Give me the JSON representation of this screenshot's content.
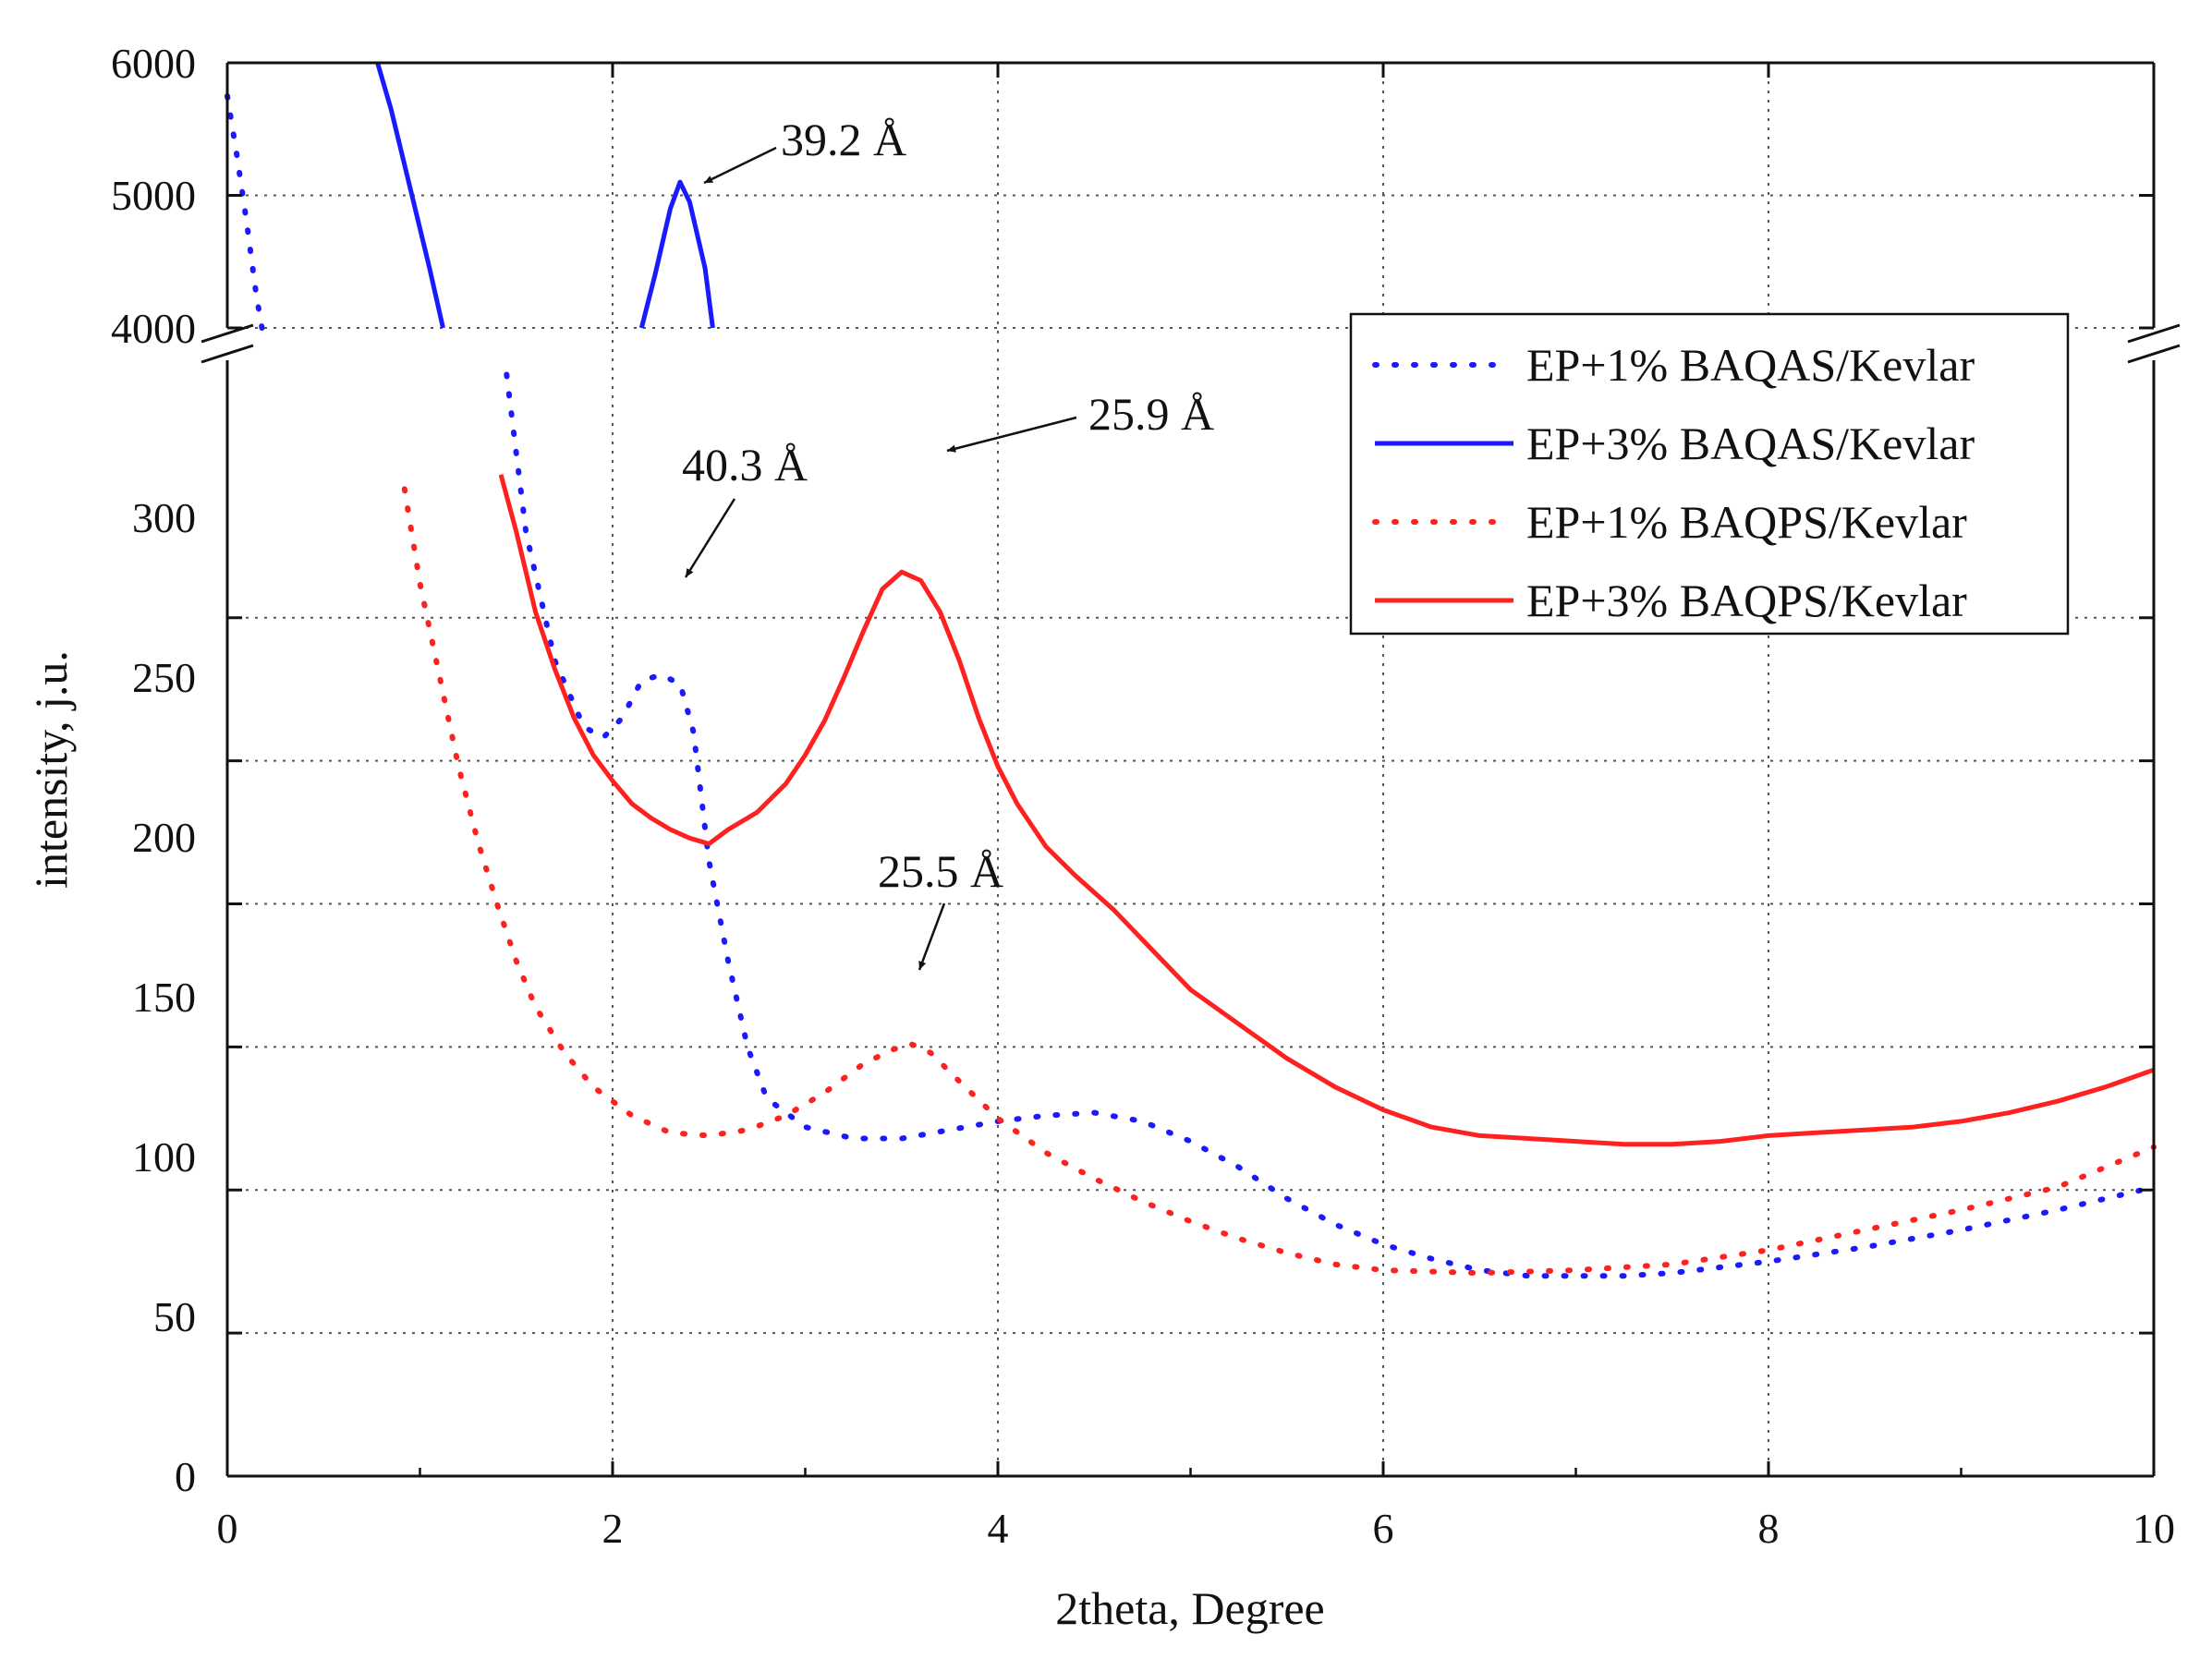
{
  "chart_data": {
    "type": "line",
    "xlabel": "2theta, Degree",
    "ylabel": "intensity, j.u.",
    "xlim": [
      0,
      10
    ],
    "x_ticks": [
      "0",
      "2",
      "4",
      "6",
      "8",
      "10"
    ],
    "y_axis_break": true,
    "y_lower_range": [
      0,
      390
    ],
    "y_lower_ticks": [
      "0",
      "50",
      "100",
      "150",
      "200",
      "250",
      "300"
    ],
    "y_upper_range": [
      4000,
      6000
    ],
    "y_upper_ticks": [
      "4000",
      "5000",
      "6000"
    ],
    "grid": true,
    "legend_position": "upper-right",
    "series": [
      {
        "name": "EP+1% BAQAS/Kevlar",
        "color": "#1a1aff",
        "style": "dotted",
        "upper_points": [
          [
            0.0,
            5750
          ],
          [
            0.05,
            5300
          ],
          [
            0.1,
            4800
          ],
          [
            0.15,
            4250
          ],
          [
            0.18,
            4000
          ]
        ],
        "lower_points": [
          [
            1.45,
            385
          ],
          [
            1.55,
            330
          ],
          [
            1.7,
            285
          ],
          [
            1.85,
            262
          ],
          [
            1.95,
            258
          ],
          [
            2.05,
            265
          ],
          [
            2.15,
            278
          ],
          [
            2.25,
            280
          ],
          [
            2.35,
            277
          ],
          [
            2.42,
            260
          ],
          [
            2.5,
            215
          ],
          [
            2.6,
            180
          ],
          [
            2.7,
            150
          ],
          [
            2.8,
            132
          ],
          [
            3.0,
            122
          ],
          [
            3.25,
            118
          ],
          [
            3.5,
            118
          ],
          [
            3.75,
            121
          ],
          [
            4.0,
            124
          ],
          [
            4.25,
            126
          ],
          [
            4.5,
            127
          ],
          [
            4.75,
            124
          ],
          [
            5.0,
            117
          ],
          [
            5.25,
            108
          ],
          [
            5.5,
            97
          ],
          [
            5.75,
            88
          ],
          [
            6.0,
            81
          ],
          [
            6.25,
            76
          ],
          [
            6.5,
            72
          ],
          [
            6.75,
            70
          ],
          [
            7.0,
            70
          ],
          [
            7.25,
            70
          ],
          [
            7.5,
            71
          ],
          [
            7.75,
            73
          ],
          [
            8.0,
            75
          ],
          [
            8.5,
            80
          ],
          [
            9.0,
            86
          ],
          [
            9.5,
            93
          ],
          [
            10.0,
            101
          ]
        ]
      },
      {
        "name": "EP+3% BAQAS/Kevlar",
        "color": "#1a1aff",
        "style": "solid",
        "upper_segments": [
          [
            [
              0.78,
              6000
            ],
            [
              0.85,
              5650
            ],
            [
              0.95,
              5050
            ],
            [
              1.05,
              4450
            ],
            [
              1.12,
              4000
            ]
          ],
          [
            [
              2.15,
              4000
            ],
            [
              2.22,
              4400
            ],
            [
              2.3,
              4900
            ],
            [
              2.35,
              5100
            ],
            [
              2.4,
              4950
            ],
            [
              2.48,
              4450
            ],
            [
              2.52,
              4000
            ]
          ]
        ]
      },
      {
        "name": "EP+1% BAQPS/Kevlar",
        "color": "#ff2020",
        "style": "dotted",
        "lower_points": [
          [
            0.92,
            345
          ],
          [
            1.0,
            312
          ],
          [
            1.1,
            280
          ],
          [
            1.2,
            248
          ],
          [
            1.3,
            222
          ],
          [
            1.4,
            200
          ],
          [
            1.5,
            180
          ],
          [
            1.6,
            164
          ],
          [
            1.75,
            148
          ],
          [
            1.9,
            136
          ],
          [
            2.1,
            126
          ],
          [
            2.3,
            120
          ],
          [
            2.5,
            119
          ],
          [
            2.7,
            121
          ],
          [
            2.9,
            126
          ],
          [
            3.1,
            134
          ],
          [
            3.3,
            144
          ],
          [
            3.45,
            149
          ],
          [
            3.55,
            151
          ],
          [
            3.65,
            148
          ],
          [
            3.8,
            138
          ],
          [
            4.0,
            125
          ],
          [
            4.25,
            113
          ],
          [
            4.5,
            104
          ],
          [
            4.75,
            96
          ],
          [
            5.0,
            89
          ],
          [
            5.25,
            83
          ],
          [
            5.5,
            78
          ],
          [
            5.75,
            74
          ],
          [
            6.0,
            72
          ],
          [
            6.5,
            71
          ],
          [
            7.0,
            72
          ],
          [
            7.5,
            74
          ],
          [
            8.0,
            79
          ],
          [
            8.5,
            86
          ],
          [
            9.0,
            93
          ],
          [
            9.5,
            101
          ],
          [
            10.0,
            115
          ]
        ]
      },
      {
        "name": "EP+3% BAQPS/Kevlar",
        "color": "#ff2020",
        "style": "solid",
        "lower_points": [
          [
            1.42,
            350
          ],
          [
            1.5,
            330
          ],
          [
            1.6,
            302
          ],
          [
            1.7,
            282
          ],
          [
            1.8,
            265
          ],
          [
            1.9,
            252
          ],
          [
            2.0,
            243
          ],
          [
            2.1,
            235
          ],
          [
            2.2,
            230
          ],
          [
            2.3,
            226
          ],
          [
            2.4,
            223
          ],
          [
            2.5,
            221
          ],
          [
            2.6,
            226
          ],
          [
            2.75,
            232
          ],
          [
            2.9,
            242
          ],
          [
            3.0,
            252
          ],
          [
            3.1,
            264
          ],
          [
            3.2,
            279
          ],
          [
            3.3,
            295
          ],
          [
            3.4,
            310
          ],
          [
            3.5,
            316
          ],
          [
            3.6,
            313
          ],
          [
            3.7,
            302
          ],
          [
            3.8,
            285
          ],
          [
            3.9,
            265
          ],
          [
            4.0,
            248
          ],
          [
            4.1,
            235
          ],
          [
            4.25,
            220
          ],
          [
            4.4,
            210
          ],
          [
            4.6,
            198
          ],
          [
            4.8,
            184
          ],
          [
            5.0,
            170
          ],
          [
            5.25,
            158
          ],
          [
            5.5,
            146
          ],
          [
            5.75,
            136
          ],
          [
            6.0,
            128
          ],
          [
            6.25,
            122
          ],
          [
            6.5,
            119
          ],
          [
            6.75,
            118
          ],
          [
            7.0,
            117
          ],
          [
            7.25,
            116
          ],
          [
            7.5,
            116
          ],
          [
            7.75,
            117
          ],
          [
            8.0,
            119
          ],
          [
            8.25,
            120
          ],
          [
            8.5,
            121
          ],
          [
            8.75,
            122
          ],
          [
            9.0,
            124
          ],
          [
            9.25,
            127
          ],
          [
            9.5,
            131
          ],
          [
            9.75,
            136
          ],
          [
            10.0,
            142
          ]
        ]
      }
    ],
    "annotations": [
      {
        "text": "39.2 Å",
        "target": [
          2.35,
          5100
        ],
        "axis": "upper"
      },
      {
        "text": "40.3 Å",
        "target": [
          2.35,
          280
        ],
        "axis": "lower"
      },
      {
        "text": "25.9 Å",
        "target": [
          3.6,
          316
        ],
        "axis": "lower"
      },
      {
        "text": "25.5 Å",
        "target": [
          3.6,
          151
        ],
        "axis": "lower"
      }
    ]
  }
}
